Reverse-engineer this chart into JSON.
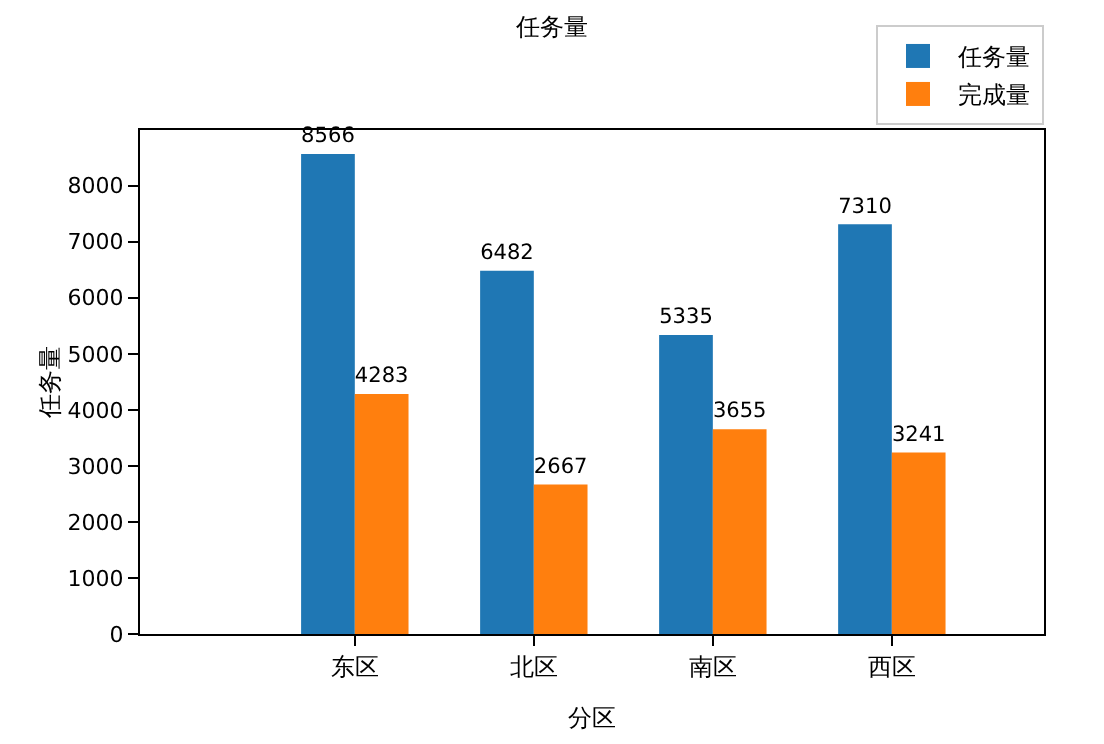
{
  "chart_data": {
    "type": "bar",
    "title": "任务量",
    "xlabel": "分区",
    "ylabel": "任务量",
    "categories": [
      "东区",
      "北区",
      "南区",
      "西区"
    ],
    "series": [
      {
        "name": "任务量",
        "color": "#1f77b4",
        "values": [
          8566,
          6482,
          5335,
          7310
        ]
      },
      {
        "name": "完成量",
        "color": "#ff7f0e",
        "values": [
          4283,
          2667,
          3655,
          3241
        ]
      }
    ],
    "ylim": [
      0,
      8994
    ],
    "yticks": [
      0,
      1000,
      2000,
      3000,
      4000,
      5000,
      6000,
      7000,
      8000
    ],
    "data_labels": true,
    "grid": false,
    "legend": "top right"
  }
}
